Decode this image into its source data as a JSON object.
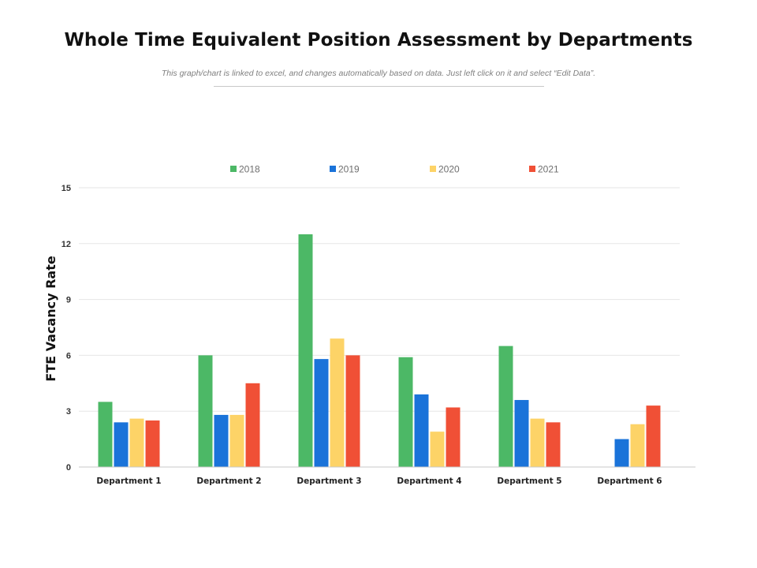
{
  "header": {
    "title": "Whole Time Equivalent Position Assessment by Departments",
    "subtitle": "This graph/chart is linked to excel, and changes automatically based on data. Just left click on it and select “Edit Data”."
  },
  "colors": {
    "2018": "#4cb866",
    "2019": "#1a73d9",
    "2020": "#fdd367",
    "2021": "#f05036",
    "grid": "#e6e6e6",
    "axis": "#c8c8c8"
  },
  "chart_data": {
    "type": "bar",
    "title": "Whole Time Equivalent Position Assessment by Departments",
    "xlabel": "",
    "ylabel": "FTE Vacancy Rate",
    "ylim": [
      0,
      15
    ],
    "yticks": [
      0,
      3,
      6,
      9,
      12,
      15
    ],
    "grid": true,
    "legend_position": "top-center",
    "categories": [
      "Department 1",
      "Department 2",
      "Department 3",
      "Department 4",
      "Department 5",
      "Department 6"
    ],
    "series": [
      {
        "name": "2018",
        "values": [
          3.5,
          6.0,
          12.5,
          5.9,
          6.5,
          0
        ]
      },
      {
        "name": "2019",
        "values": [
          2.4,
          2.8,
          5.8,
          3.9,
          3.6,
          1.5
        ]
      },
      {
        "name": "2020",
        "values": [
          2.6,
          2.8,
          6.9,
          1.9,
          2.6,
          2.3
        ]
      },
      {
        "name": "2021",
        "values": [
          2.5,
          4.5,
          6.0,
          3.2,
          2.4,
          3.3
        ]
      }
    ]
  }
}
